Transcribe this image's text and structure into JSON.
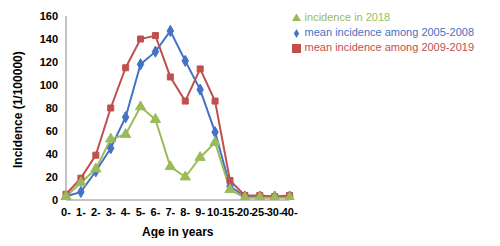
{
  "chart_data": {
    "type": "line",
    "x_label": "Age in years",
    "y_label": "Incidence (1/100000)",
    "categories": [
      "0-",
      "1-",
      "2-",
      "3-",
      "4-",
      "5-",
      "6-",
      "7-",
      "8-",
      "9-",
      "10-",
      "15-",
      "20-",
      "25-",
      "30-",
      "40-"
    ],
    "series": [
      {
        "name": "mean incidence among 2005-2008",
        "color": "#4472c4",
        "marker": "diamond",
        "values": [
          3,
          7,
          25,
          45,
          72,
          118,
          129,
          147,
          121,
          96,
          59,
          12,
          3,
          3,
          3,
          3
        ]
      },
      {
        "name": "mean incidence among 2009-2019",
        "color": "#c0504d",
        "marker": "square",
        "values": [
          5,
          19,
          39,
          80,
          115,
          140,
          143,
          107,
          86,
          114,
          86,
          17,
          4,
          4,
          3,
          4
        ]
      },
      {
        "name": "incidence in 2018",
        "color": "#9bbb59",
        "marker": "triangle",
        "values": [
          3,
          15,
          27,
          53,
          57,
          81,
          70,
          29,
          20,
          37,
          50,
          9,
          2,
          2,
          2,
          2
        ]
      }
    ],
    "ylim": [
      0,
      160
    ],
    "yticks": [
      0,
      20,
      40,
      60,
      80,
      100,
      120,
      140,
      160
    ],
    "grid": false,
    "legend": "top-right"
  }
}
